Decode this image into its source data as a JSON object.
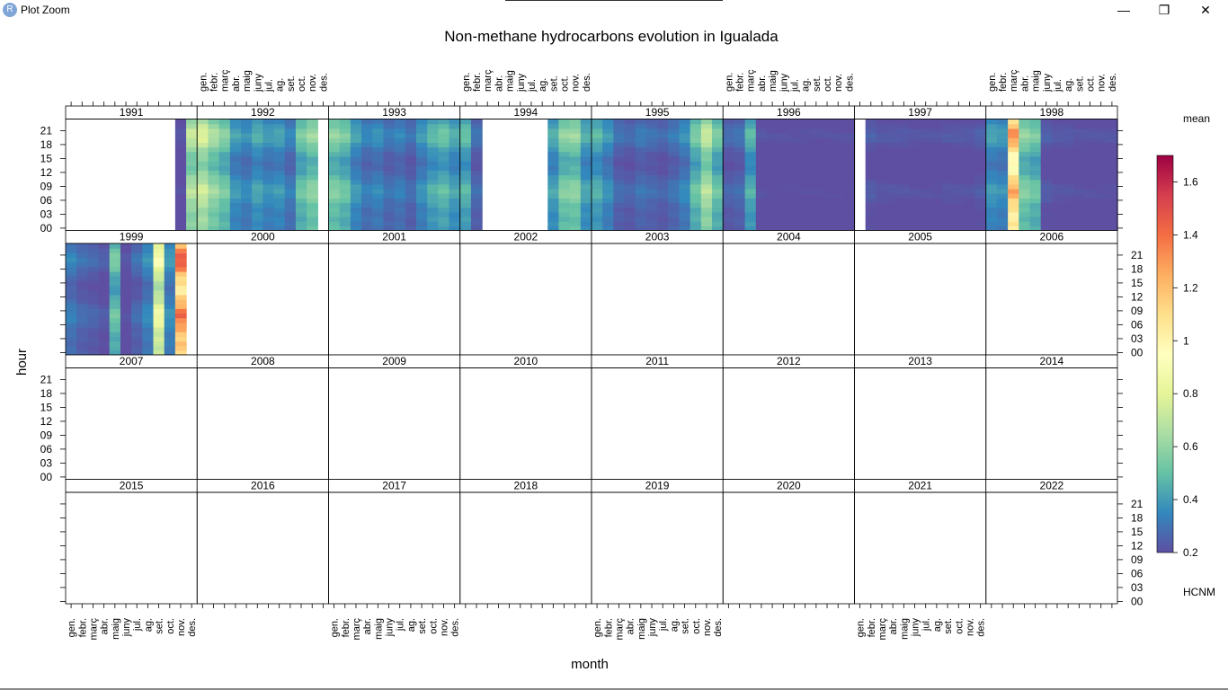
{
  "window": {
    "title": "Plot Zoom",
    "app_icon_letter": "R",
    "minimize_glyph": "—",
    "maximize_glyph": "❐",
    "close_glyph": "✕"
  },
  "chart_data": {
    "type": "heatmap",
    "title": "Non-methane hydrocarbons evolution in Igualada",
    "xlabel": "month",
    "ylabel": "hour",
    "months": [
      "gen.",
      "febr.",
      "març",
      "abr.",
      "maig",
      "juny",
      "jul.",
      "ag.",
      "set.",
      "oct.",
      "nov.",
      "des."
    ],
    "hour_ticks": [
      "00",
      "03",
      "06",
      "09",
      "12",
      "15",
      "18",
      "21"
    ],
    "panels": [
      "1991",
      "1992",
      "1993",
      "1994",
      "1995",
      "1996",
      "1997",
      "1998",
      "1999",
      "2000",
      "2001",
      "2002",
      "2003",
      "2004",
      "2005",
      "2006",
      "2007",
      "2008",
      "2009",
      "2010",
      "2011",
      "2012",
      "2013",
      "2014",
      "2015",
      "2016",
      "2017",
      "2018",
      "2019",
      "2020",
      "2021",
      "2022"
    ],
    "legend": {
      "title": "mean",
      "subtitle": "HCNM",
      "min": 0.2,
      "max": 1.7,
      "ticks": [
        "0.2",
        "0.4",
        "0.6",
        "0.8",
        "1",
        "1.2",
        "1.4",
        "1.6"
      ],
      "tick_values": [
        0.2,
        0.4,
        0.6,
        0.8,
        1.0,
        1.2,
        1.4,
        1.6
      ]
    },
    "colorscale": [
      "#5E4FA2",
      "#3288BD",
      "#66C2A5",
      "#ABDDA4",
      "#E6F598",
      "#FFFFBF",
      "#FEE08B",
      "#FDAE61",
      "#F46D43",
      "#D53E4F",
      "#9E0142"
    ],
    "series": [
      {
        "name": "1991",
        "values": [
          null,
          null,
          null,
          null,
          null,
          null,
          null,
          null,
          null,
          null,
          0.22,
          0.72
        ]
      },
      {
        "name": "1992",
        "values": [
          0.78,
          0.66,
          0.58,
          0.42,
          0.38,
          0.45,
          0.4,
          0.42,
          0.35,
          0.55,
          0.62,
          null
        ]
      },
      {
        "name": "1993",
        "values": [
          0.6,
          0.55,
          0.42,
          0.35,
          0.38,
          0.32,
          0.35,
          0.3,
          0.4,
          0.48,
          0.52,
          0.45
        ]
      },
      {
        "name": "1994",
        "values": [
          0.5,
          0.3,
          null,
          null,
          null,
          null,
          null,
          null,
          0.45,
          0.6,
          0.62,
          0.45
        ]
      },
      {
        "name": "1995",
        "values": [
          0.48,
          0.4,
          0.3,
          0.28,
          0.32,
          0.3,
          0.28,
          0.32,
          0.38,
          0.55,
          0.72,
          0.55
        ]
      },
      {
        "name": "1996",
        "values": [
          0.28,
          0.3,
          0.48,
          0.22,
          0.21,
          0.21,
          0.21,
          0.21,
          0.21,
          0.21,
          0.21,
          0.21
        ]
      },
      {
        "name": "1997",
        "values": [
          null,
          0.25,
          0.23,
          0.23,
          0.23,
          0.22,
          0.22,
          0.22,
          0.23,
          0.23,
          0.23,
          0.25
        ]
      },
      {
        "name": "1998",
        "values": [
          0.42,
          0.4,
          1.3,
          0.6,
          0.55,
          0.25,
          0.23,
          0.23,
          0.22,
          0.22,
          0.22,
          0.22
        ]
      },
      {
        "name": "1999",
        "values": [
          0.35,
          0.3,
          0.28,
          0.25,
          0.55,
          0.22,
          0.3,
          0.38,
          0.9,
          0.4,
          1.45,
          null
        ]
      },
      {
        "name": "2000",
        "values": []
      },
      {
        "name": "2001",
        "values": []
      },
      {
        "name": "2002",
        "values": []
      },
      {
        "name": "2003",
        "values": []
      },
      {
        "name": "2004",
        "values": []
      },
      {
        "name": "2005",
        "values": []
      },
      {
        "name": "2006",
        "values": []
      },
      {
        "name": "2007",
        "values": []
      },
      {
        "name": "2008",
        "values": []
      },
      {
        "name": "2009",
        "values": []
      },
      {
        "name": "2010",
        "values": []
      },
      {
        "name": "2011",
        "values": []
      },
      {
        "name": "2012",
        "values": []
      },
      {
        "name": "2013",
        "values": []
      },
      {
        "name": "2014",
        "values": []
      },
      {
        "name": "2015",
        "values": []
      },
      {
        "name": "2016",
        "values": []
      },
      {
        "name": "2017",
        "values": []
      },
      {
        "name": "2018",
        "values": []
      },
      {
        "name": "2019",
        "values": []
      },
      {
        "name": "2020",
        "values": []
      },
      {
        "name": "2021",
        "values": []
      },
      {
        "name": "2022",
        "values": []
      }
    ],
    "grid": false,
    "legend_position": "right"
  }
}
